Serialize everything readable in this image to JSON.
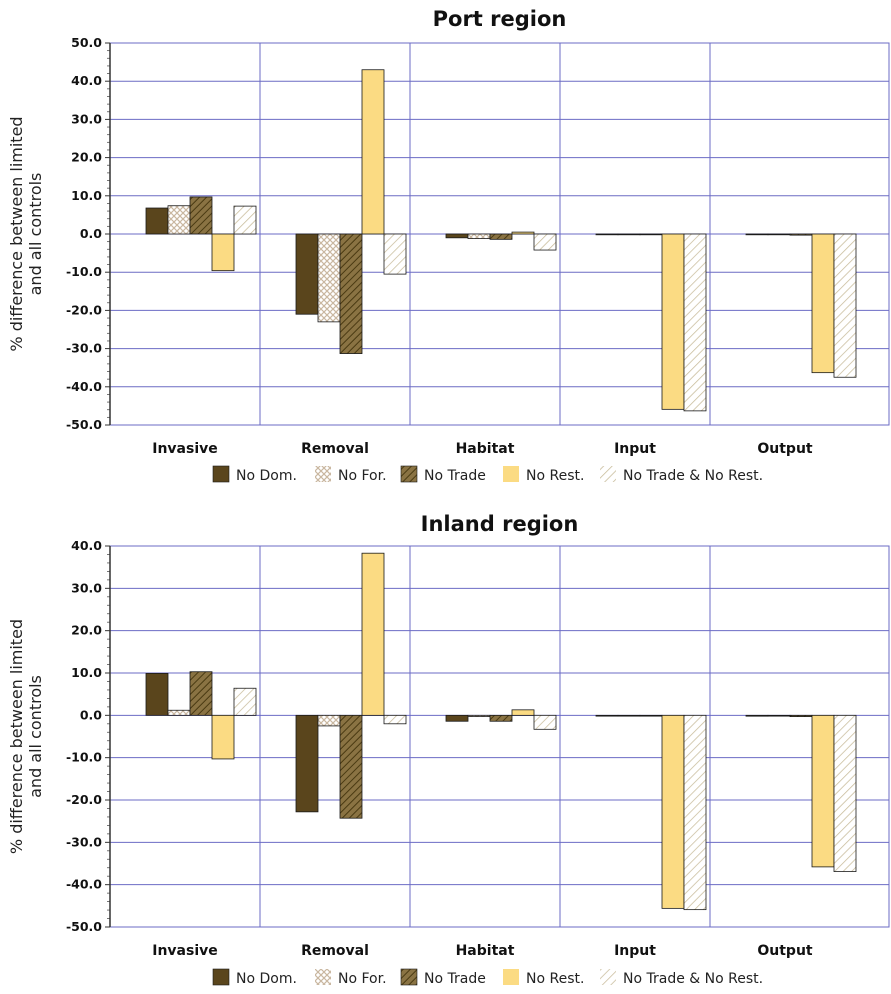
{
  "colors": {
    "no_dom": "#5a451c",
    "no_for_bg": "#ffffff",
    "no_for_pattern": "#c9b7a0",
    "no_trade_bg": "#8a7343",
    "no_trade_pattern": "#4a3a12",
    "no_rest": "#fbdb83",
    "no_trade_rest_bg": "#ffffff",
    "no_trade_rest_pattern": "#c8bb9a",
    "grid": "#6b6bc4",
    "bar_edge": "#1a1a1a"
  },
  "chart_data": [
    {
      "type": "bar",
      "title": "Port region",
      "ylabel_line1": "% difference between limited",
      "ylabel_line2": "and all controls",
      "ylim": [
        -50,
        50
      ],
      "yticks": [
        "50.0",
        "40.0",
        "30.0",
        "20.0",
        "10.0",
        "0.0",
        "-10.0",
        "-20.0",
        "-30.0",
        "-40.0",
        "-50.0"
      ],
      "categories": [
        "Invasive",
        "Removal",
        "Habitat",
        "Input",
        "Output"
      ],
      "grid": true,
      "legend_position": "bottom",
      "series": [
        {
          "name": "No Dom.",
          "values": [
            6.8,
            -21.0,
            -1.0,
            0.0,
            -0.2
          ]
        },
        {
          "name": "No For.",
          "values": [
            7.4,
            -23.0,
            -1.2,
            0.0,
            -0.2
          ]
        },
        {
          "name": "No Trade",
          "values": [
            9.7,
            -31.3,
            -1.4,
            0.0,
            -0.3
          ]
        },
        {
          "name": "No Rest.",
          "values": [
            -9.6,
            43.0,
            0.5,
            -45.9,
            -36.3
          ]
        },
        {
          "name": "No Trade & No Rest.",
          "values": [
            7.3,
            -10.5,
            -4.2,
            -46.3,
            -37.5
          ]
        }
      ]
    },
    {
      "type": "bar",
      "title": "Inland region",
      "ylabel_line1": "% difference between limited",
      "ylabel_line2": "and all controls",
      "ylim": [
        -50,
        40
      ],
      "yticks": [
        "40.0",
        "30.0",
        "20.0",
        "10.0",
        "0.0",
        "-10.0",
        "-20.0",
        "-30.0",
        "-40.0",
        "-50.0"
      ],
      "categories": [
        "Invasive",
        "Removal",
        "Habitat",
        "Input",
        "Output"
      ],
      "grid": true,
      "legend_position": "bottom",
      "series": [
        {
          "name": "No Dom.",
          "values": [
            9.9,
            -22.8,
            -1.4,
            0.0,
            -0.2
          ]
        },
        {
          "name": "No For.",
          "values": [
            1.2,
            -2.5,
            -0.3,
            0.0,
            -0.1
          ]
        },
        {
          "name": "No Trade",
          "values": [
            10.3,
            -24.3,
            -1.4,
            0.0,
            -0.3
          ]
        },
        {
          "name": "No Rest.",
          "values": [
            -10.3,
            38.3,
            1.3,
            -45.6,
            -35.8
          ]
        },
        {
          "name": "No Trade & No Rest.",
          "values": [
            6.4,
            -2.0,
            -3.3,
            -45.9,
            -36.9
          ]
        }
      ]
    }
  ]
}
